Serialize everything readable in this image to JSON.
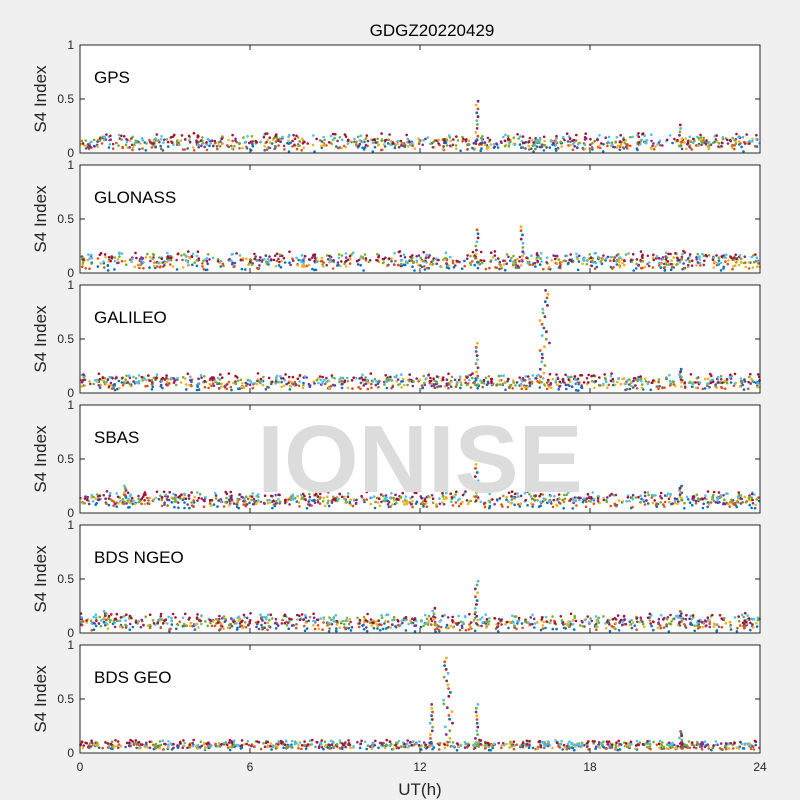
{
  "figure": {
    "title": "GDGZ20220429",
    "xlabel": "UT(h)",
    "ylabel": "S4 Index",
    "watermark": "IONISE",
    "x_ticks": [
      "0",
      "6",
      "12",
      "18",
      "24"
    ],
    "y_ticks": [
      "0",
      "0.5",
      "1"
    ]
  },
  "colors": {
    "series": [
      "#0072BD",
      "#D95319",
      "#EDB120",
      "#7E2F8E",
      "#77AC30",
      "#4DBEEE",
      "#A2142F"
    ],
    "background": "#f0f0f0",
    "axes_bg": "#ffffff",
    "watermark": "#dcdcdc"
  },
  "chart_data": [
    {
      "type": "scatter",
      "system": "GPS",
      "xlim": [
        0,
        24
      ],
      "ylim": [
        0,
        1
      ],
      "baseline": [
        0.02,
        0.18
      ],
      "events": [
        {
          "x": 14.0,
          "y_min": 0.12,
          "y_max": 0.48
        },
        {
          "x": 21.2,
          "y_min": 0.1,
          "y_max": 0.26
        }
      ]
    },
    {
      "type": "scatter",
      "system": "GLONASS",
      "xlim": [
        0,
        24
      ],
      "ylim": [
        0,
        1
      ],
      "baseline": [
        0.03,
        0.2
      ],
      "events": [
        {
          "x": 14.0,
          "y_min": 0.1,
          "y_max": 0.4
        },
        {
          "x": 15.6,
          "y_min": 0.12,
          "y_max": 0.43
        }
      ]
    },
    {
      "type": "scatter",
      "system": "GALILEO",
      "xlim": [
        0,
        24
      ],
      "ylim": [
        0,
        1
      ],
      "baseline": [
        0.03,
        0.18
      ],
      "events": [
        {
          "x": 14.0,
          "y_min": 0.12,
          "y_max": 0.46
        },
        {
          "x": 16.4,
          "y_min": 0.15,
          "y_max": 0.95
        },
        {
          "x": 21.2,
          "y_min": 0.1,
          "y_max": 0.22
        }
      ]
    },
    {
      "type": "scatter",
      "system": "SBAS",
      "xlim": [
        0,
        24
      ],
      "ylim": [
        0,
        1
      ],
      "baseline": [
        0.05,
        0.2
      ],
      "events": [
        {
          "x": 1.6,
          "y_min": 0.15,
          "y_max": 0.25
        },
        {
          "x": 14.0,
          "y_min": 0.15,
          "y_max": 0.45
        },
        {
          "x": 21.2,
          "y_min": 0.15,
          "y_max": 0.25
        }
      ]
    },
    {
      "type": "scatter",
      "system": "BDS NGEO",
      "xlim": [
        0,
        24
      ],
      "ylim": [
        0,
        1
      ],
      "baseline": [
        0.02,
        0.18
      ],
      "events": [
        {
          "x": 0.9,
          "y_min": 0.1,
          "y_max": 0.2
        },
        {
          "x": 12.5,
          "y_min": 0.1,
          "y_max": 0.23
        },
        {
          "x": 14.0,
          "y_min": 0.12,
          "y_max": 0.48
        },
        {
          "x": 21.2,
          "y_min": 0.1,
          "y_max": 0.2
        }
      ]
    },
    {
      "type": "scatter",
      "system": "BDS GEO",
      "xlim": [
        0,
        24
      ],
      "ylim": [
        0,
        1
      ],
      "baseline": [
        0.03,
        0.12
      ],
      "events": [
        {
          "x": 12.4,
          "y_min": 0.1,
          "y_max": 0.45
        },
        {
          "x": 13.0,
          "y_min": 0.1,
          "y_max": 0.88
        },
        {
          "x": 14.0,
          "y_min": 0.1,
          "y_max": 0.45
        },
        {
          "x": 21.2,
          "y_min": 0.1,
          "y_max": 0.2
        }
      ]
    }
  ]
}
